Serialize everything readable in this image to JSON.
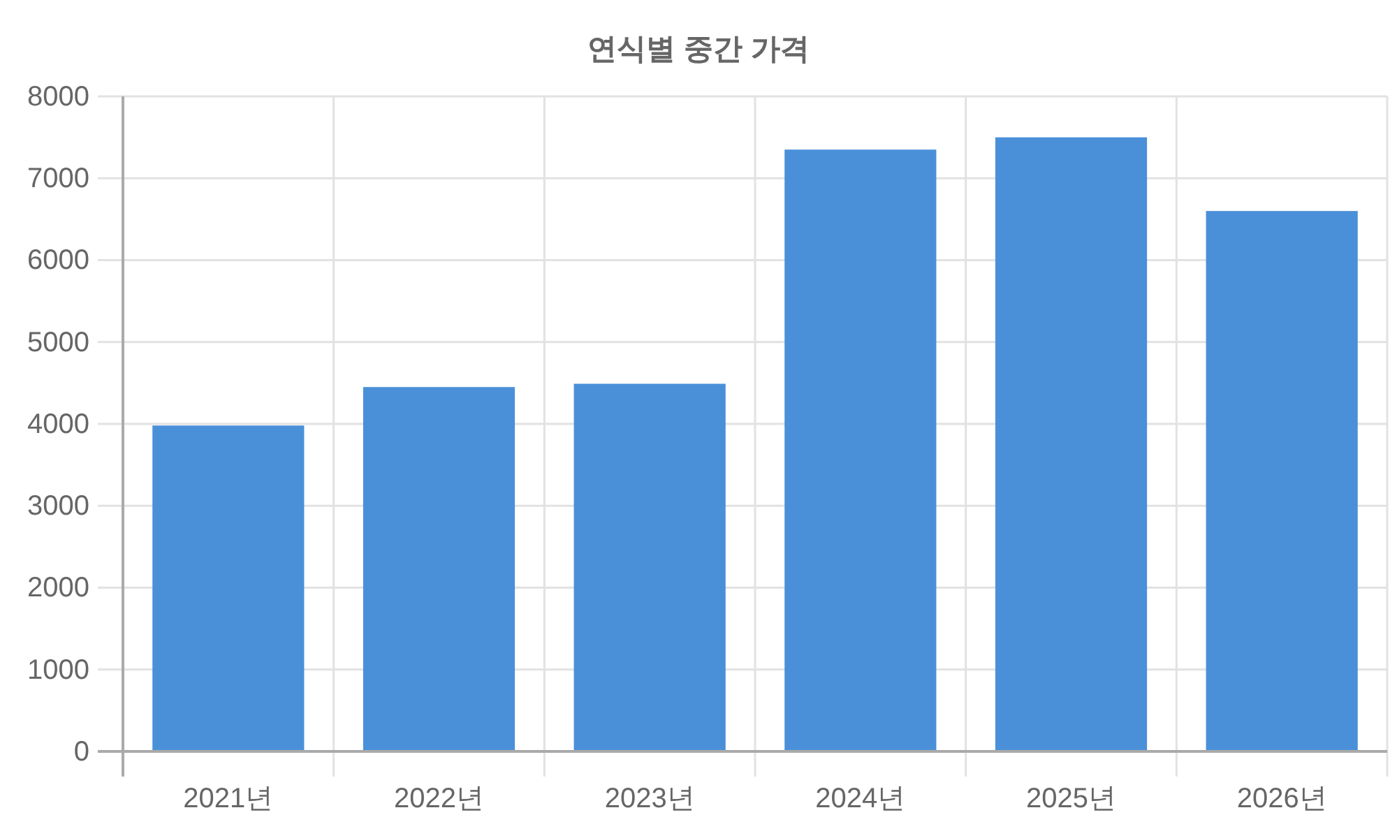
{
  "chart_data": {
    "type": "bar",
    "title": "연식별 중간 가격",
    "categories": [
      "2021년",
      "2022년",
      "2023년",
      "2024년",
      "2025년",
      "2026년"
    ],
    "values": [
      3980,
      4450,
      4490,
      7350,
      7500,
      6600
    ],
    "color": "#4a90d9",
    "ylim": [
      0,
      8000
    ],
    "yticks": [
      0,
      1000,
      2000,
      3000,
      4000,
      5000,
      6000,
      7000,
      8000
    ],
    "grid": true
  }
}
